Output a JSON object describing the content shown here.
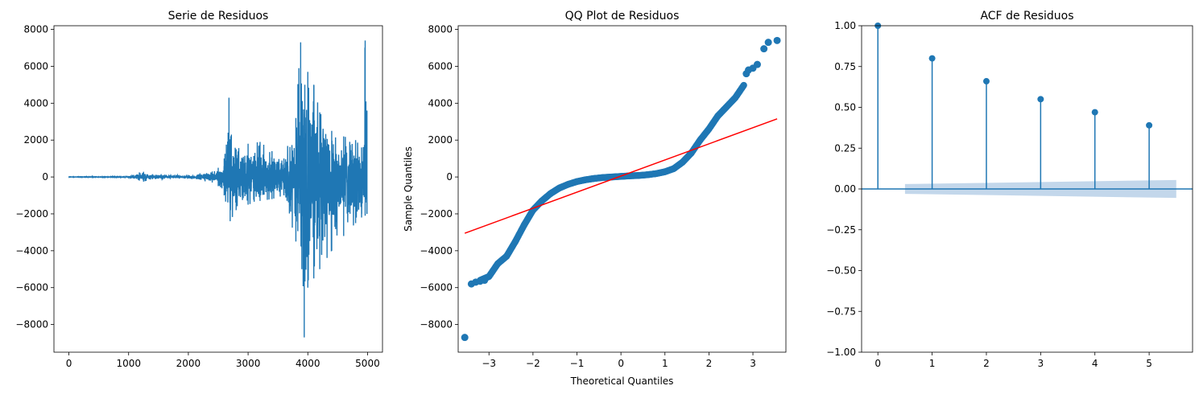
{
  "chart_data": [
    {
      "type": "line",
      "title": "Serie de Residuos",
      "xlabel": "",
      "ylabel": "",
      "xlim": [
        -250,
        5250
      ],
      "ylim": [
        -9500,
        8200
      ],
      "xticks": [
        0,
        1000,
        2000,
        3000,
        4000,
        5000
      ],
      "xtick_labels": [
        "0",
        "1000",
        "2000",
        "3000",
        "4000",
        "5000"
      ],
      "yticks": [
        -8000,
        -6000,
        -4000,
        -2000,
        0,
        2000,
        4000,
        6000,
        8000
      ],
      "ytick_labels": [
        "−8000",
        "−6000",
        "−4000",
        "−2000",
        "0",
        "2000",
        "4000",
        "6000",
        "8000"
      ],
      "n_points": 4990,
      "color": "#1f77b4",
      "envelope": [
        [
          0,
          10
        ],
        [
          1000,
          20
        ],
        [
          1180,
          250
        ],
        [
          1250,
          280
        ],
        [
          1400,
          150
        ],
        [
          1600,
          120
        ],
        [
          2000,
          100
        ],
        [
          2400,
          300
        ],
        [
          2500,
          500
        ],
        [
          2600,
          1000
        ],
        [
          2680,
          4300
        ],
        [
          2720,
          2300
        ],
        [
          2800,
          1500
        ],
        [
          3000,
          1800
        ],
        [
          3200,
          1900
        ],
        [
          3400,
          1400
        ],
        [
          3600,
          1000
        ],
        [
          3800,
          3200
        ],
        [
          3850,
          5900
        ],
        [
          3880,
          7300
        ],
        [
          3950,
          5000
        ],
        [
          4000,
          5700
        ],
        [
          4100,
          5000
        ],
        [
          4200,
          3500
        ],
        [
          4400,
          2500
        ],
        [
          4600,
          2200
        ],
        [
          4800,
          2000
        ],
        [
          4900,
          1600
        ],
        [
          4960,
          7400
        ],
        [
          4990,
          3600
        ]
      ],
      "envelope_neg": [
        [
          0,
          10
        ],
        [
          1000,
          20
        ],
        [
          1180,
          200
        ],
        [
          1250,
          250
        ],
        [
          1400,
          120
        ],
        [
          1600,
          100
        ],
        [
          2000,
          80
        ],
        [
          2400,
          300
        ],
        [
          2500,
          500
        ],
        [
          2600,
          1000
        ],
        [
          2700,
          2400
        ],
        [
          2800,
          1800
        ],
        [
          3000,
          1500
        ],
        [
          3200,
          1300
        ],
        [
          3400,
          1200
        ],
        [
          3600,
          1000
        ],
        [
          3800,
          3500
        ],
        [
          3900,
          5000
        ],
        [
          3940,
          8700
        ],
        [
          4000,
          6000
        ],
        [
          4100,
          5500
        ],
        [
          4200,
          5000
        ],
        [
          4400,
          4000
        ],
        [
          4600,
          3200
        ],
        [
          4800,
          2500
        ],
        [
          4900,
          2200
        ],
        [
          4960,
          2100
        ],
        [
          4990,
          2000
        ]
      ]
    },
    {
      "type": "scatter",
      "title": "QQ Plot de Residuos",
      "xlabel": "Theoretical Quantiles",
      "ylabel": "Sample Quantiles",
      "xlim": [
        -3.7,
        3.75
      ],
      "ylim": [
        -9500,
        8200
      ],
      "xticks": [
        -3,
        -2,
        -1,
        0,
        1,
        2,
        3
      ],
      "xtick_labels": [
        "−3",
        "−2",
        "−1",
        "0",
        "1",
        "2",
        "3"
      ],
      "yticks": [
        -8000,
        -6000,
        -4000,
        -2000,
        0,
        2000,
        4000,
        6000,
        8000
      ],
      "ytick_labels": [
        "−8000",
        "−6000",
        "−4000",
        "−2000",
        "0",
        "2000",
        "4000",
        "6000",
        "8000"
      ],
      "point_color": "#1f77b4",
      "line_color": "#ff0000",
      "fit_line": {
        "x": [
          -3.55,
          3.55
        ],
        "y": [
          -3050,
          3150
        ]
      },
      "quantile_curve": [
        [
          -3.2,
          -5600
        ],
        [
          -3.0,
          -5400
        ],
        [
          -2.8,
          -4700
        ],
        [
          -2.6,
          -4300
        ],
        [
          -2.4,
          -3500
        ],
        [
          -2.2,
          -2600
        ],
        [
          -2.0,
          -1800
        ],
        [
          -1.8,
          -1300
        ],
        [
          -1.6,
          -900
        ],
        [
          -1.4,
          -600
        ],
        [
          -1.2,
          -400
        ],
        [
          -1.0,
          -250
        ],
        [
          -0.8,
          -150
        ],
        [
          -0.6,
          -80
        ],
        [
          -0.4,
          -30
        ],
        [
          -0.2,
          0
        ],
        [
          0.0,
          30
        ],
        [
          0.2,
          60
        ],
        [
          0.4,
          80
        ],
        [
          0.6,
          120
        ],
        [
          0.8,
          180
        ],
        [
          1.0,
          280
        ],
        [
          1.2,
          450
        ],
        [
          1.4,
          800
        ],
        [
          1.6,
          1300
        ],
        [
          1.8,
          2000
        ],
        [
          2.0,
          2600
        ],
        [
          2.2,
          3300
        ],
        [
          2.4,
          3800
        ],
        [
          2.6,
          4300
        ],
        [
          2.8,
          5000
        ]
      ],
      "extreme_points": [
        [
          -3.55,
          -8700
        ],
        [
          -3.4,
          -5800
        ],
        [
          -3.3,
          -5700
        ],
        [
          -3.2,
          -5650
        ],
        [
          -3.1,
          -5600
        ],
        [
          2.85,
          5600
        ],
        [
          2.9,
          5800
        ],
        [
          3.0,
          5900
        ],
        [
          3.1,
          6100
        ],
        [
          3.25,
          6950
        ],
        [
          3.35,
          7300
        ],
        [
          3.55,
          7400
        ]
      ]
    },
    {
      "type": "stem",
      "title": "ACF de Residuos",
      "xlabel": "",
      "ylabel": "",
      "xlim": [
        -0.3,
        5.8
      ],
      "ylim": [
        -1.0,
        1.0
      ],
      "xticks": [
        0,
        1,
        2,
        3,
        4,
        5
      ],
      "xtick_labels": [
        "0",
        "1",
        "2",
        "3",
        "4",
        "5"
      ],
      "yticks": [
        -1.0,
        -0.75,
        -0.5,
        -0.25,
        0.0,
        0.25,
        0.5,
        0.75,
        1.0
      ],
      "ytick_labels": [
        "−1.00",
        "−0.75",
        "−0.50",
        "−0.25",
        "0.00",
        "0.25",
        "0.50",
        "0.75",
        "1.00"
      ],
      "lags": [
        0,
        1,
        2,
        3,
        4,
        5
      ],
      "values": [
        1.0,
        0.8,
        0.66,
        0.55,
        0.47,
        0.39
      ],
      "conf_band": {
        "x": [
          0.5,
          5.5
        ],
        "upper": [
          0.03,
          0.055
        ],
        "lower": [
          -0.03,
          -0.055
        ]
      },
      "color": "#1f77b4",
      "band_color": "#a9c6e2"
    }
  ]
}
